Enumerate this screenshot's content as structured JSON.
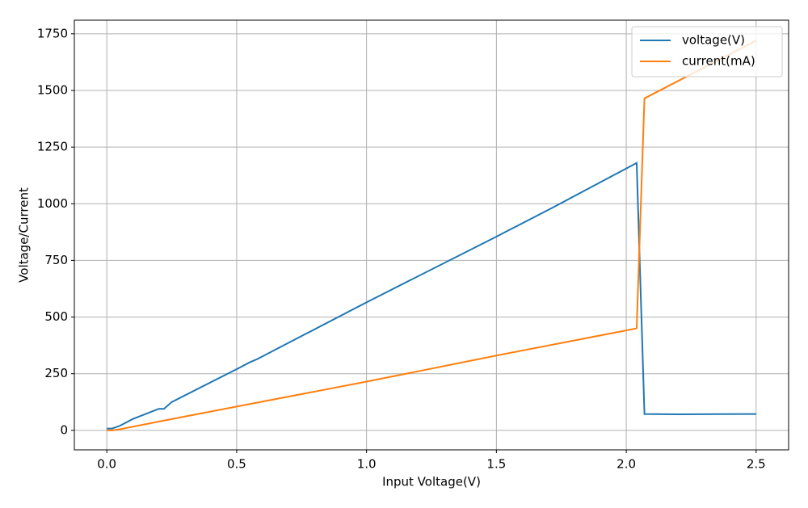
{
  "chart_data": {
    "type": "line",
    "xlabel": "Input Voltage(V)",
    "ylabel": "Voltage/Current",
    "series": [
      {
        "name": "voltage(V)",
        "color": "#1f77b4",
        "x": [
          0,
          0.02,
          0.05,
          0.1,
          0.2,
          0.22,
          0.25,
          0.5,
          0.55,
          0.58,
          1.0,
          1.5,
          1.72,
          2.04,
          2.07,
          2.2,
          2.5
        ],
        "values": [
          8,
          8,
          20,
          50,
          95,
          95,
          125,
          270,
          300,
          315,
          565,
          855,
          985,
          1180,
          72,
          71,
          72
        ]
      },
      {
        "name": "current(mA)",
        "color": "#ff7f0e",
        "x": [
          0,
          0.02,
          0.05,
          0.25,
          0.5,
          1.0,
          1.5,
          2.04,
          2.07,
          2.5
        ],
        "values": [
          0,
          0,
          5,
          50,
          105,
          215,
          330,
          450,
          1465,
          1720
        ]
      }
    ],
    "xlim": [
      -0.125,
      2.625
    ],
    "xticks": [
      {
        "value": 0,
        "label": "0.0"
      },
      0.5,
      {
        "value": 1,
        "label": "1.0"
      },
      1.5,
      {
        "value": 2,
        "label": "2.0"
      },
      2.5
    ],
    "ylim": [
      -86,
      1810
    ],
    "yticks": [
      0,
      250,
      500,
      750,
      1000,
      1250,
      1500,
      1750
    ],
    "grid": true,
    "legend": "upper right"
  }
}
